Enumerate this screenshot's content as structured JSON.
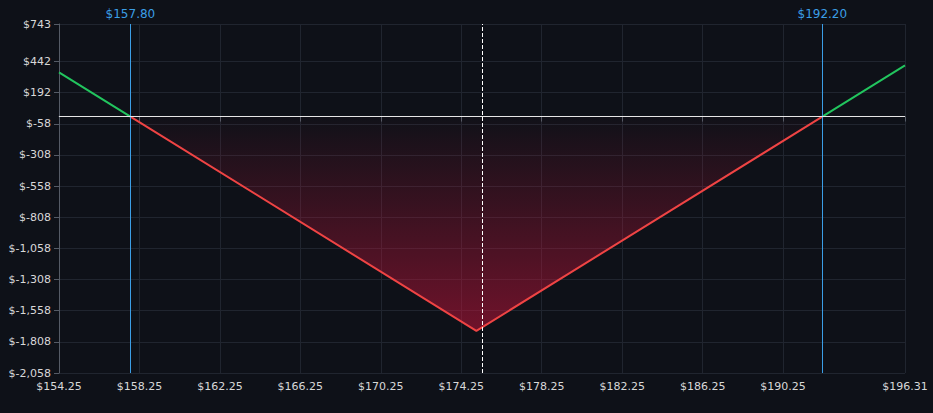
{
  "chart_data": {
    "type": "line",
    "x": [
      154.25,
      157.8,
      175.0,
      192.2,
      196.31
    ],
    "series": [
      {
        "color": "#22c55e",
        "values": [
          355,
          0,
          null,
          0,
          411
        ]
      },
      {
        "color": "#ef4444",
        "values": [
          null,
          0,
          -1720,
          0,
          null
        ]
      }
    ],
    "xlim": [
      154.25,
      196.31
    ],
    "xticks": [
      {
        "value": 154.25,
        "label": "$154.25"
      },
      {
        "value": 158.25,
        "label": "$158.25"
      },
      {
        "value": 162.25,
        "label": "$162.25"
      },
      {
        "value": 166.25,
        "label": "$166.25"
      },
      {
        "value": 170.25,
        "label": "$170.25"
      },
      {
        "value": 174.25,
        "label": "$174.25"
      },
      {
        "value": 178.25,
        "label": "$178.25"
      },
      {
        "value": 182.25,
        "label": "$182.25"
      },
      {
        "value": 186.25,
        "label": "$186.25"
      },
      {
        "value": 190.25,
        "label": "$190.25"
      },
      {
        "value": 196.31,
        "label": "$196.31"
      }
    ],
    "ylim": [
      -2058,
      743
    ],
    "yticks": [
      {
        "value": -2058,
        "label": "$-2,058"
      },
      {
        "value": -1808,
        "label": "$-1,808"
      },
      {
        "value": -1558,
        "label": "$-1,558"
      },
      {
        "value": -1308,
        "label": "$-1,308"
      },
      {
        "value": -1058,
        "label": "$-1,058"
      },
      {
        "value": -808,
        "label": "$-808"
      },
      {
        "value": -558,
        "label": "$-558"
      },
      {
        "value": -308,
        "label": "$-308"
      },
      {
        "value": -58,
        "label": "$-58"
      },
      {
        "value": 192,
        "label": "$192"
      },
      {
        "value": 442,
        "label": "$442"
      },
      {
        "value": 743,
        "label": "$743"
      }
    ],
    "annotations": [
      {
        "x": 157.8,
        "label": "$157.80",
        "color": "#3b9ee6",
        "line_style": "solid"
      },
      {
        "x": 192.2,
        "label": "$192.20",
        "color": "#3b9ee6",
        "line_style": "solid"
      },
      {
        "x": 175.28,
        "color": "#ffffff",
        "line_style": "dashed"
      },
      {
        "y": 0,
        "color": "#e6e6e6",
        "line_style": "solid"
      }
    ],
    "grid": true
  }
}
